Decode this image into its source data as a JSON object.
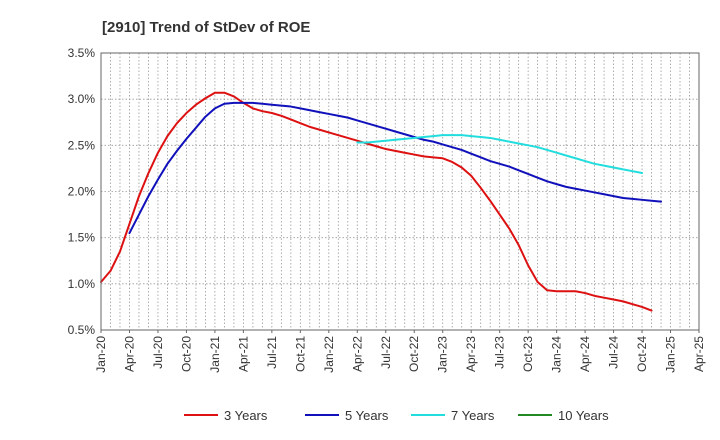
{
  "chart_data": {
    "type": "line",
    "title": "[2910]  Trend of StDev of ROE",
    "xlabel": "",
    "ylabel": "",
    "x_ticks": [
      "Jan-20",
      "Apr-20",
      "Jul-20",
      "Oct-20",
      "Jan-21",
      "Apr-21",
      "Jul-21",
      "Oct-21",
      "Jan-22",
      "Apr-22",
      "Jul-22",
      "Oct-22",
      "Jan-23",
      "Apr-23",
      "Jul-23",
      "Oct-23",
      "Jan-24",
      "Apr-24",
      "Jul-24",
      "Oct-24",
      "Jan-25",
      "Apr-25"
    ],
    "y_ticks": [
      "0.5%",
      "1.0%",
      "1.5%",
      "2.0%",
      "2.5%",
      "3.0%",
      "3.5%"
    ],
    "ylim": [
      0.5,
      3.5
    ],
    "y_unit": "%",
    "grid": true,
    "legend_position": "bottom",
    "series": [
      {
        "name": "3 Years",
        "color": "#dd1111",
        "start_index": 0,
        "values": [
          1.02,
          1.14,
          1.35,
          1.65,
          1.95,
          2.2,
          2.42,
          2.6,
          2.74,
          2.85,
          2.94,
          3.01,
          3.07,
          3.07,
          3.03,
          2.96,
          2.9,
          2.87,
          2.85,
          2.82,
          2.78,
          2.74,
          2.7,
          2.67,
          2.64,
          2.61,
          2.58,
          2.55,
          2.52,
          2.49,
          2.46,
          2.44,
          2.42,
          2.4,
          2.38,
          2.37,
          2.36,
          2.32,
          2.26,
          2.17,
          2.04,
          1.9,
          1.75,
          1.6,
          1.42,
          1.2,
          1.02,
          0.93,
          0.92,
          0.92,
          0.92,
          0.9,
          0.87,
          0.85,
          0.83,
          0.81,
          0.78,
          0.75,
          0.71
        ]
      },
      {
        "name": "5 Years",
        "color": "#1111bb",
        "start_index": 3,
        "values": [
          1.55,
          1.75,
          1.95,
          2.13,
          2.3,
          2.44,
          2.57,
          2.69,
          2.81,
          2.9,
          2.95,
          2.96,
          2.96,
          2.96,
          2.95,
          2.94,
          2.93,
          2.92,
          2.9,
          2.88,
          2.86,
          2.84,
          2.82,
          2.8,
          2.77,
          2.74,
          2.71,
          2.68,
          2.65,
          2.62,
          2.59,
          2.56,
          2.54,
          2.51,
          2.48,
          2.45,
          2.41,
          2.37,
          2.33,
          2.3,
          2.27,
          2.23,
          2.19,
          2.15,
          2.11,
          2.08,
          2.05,
          2.03,
          2.01,
          1.99,
          1.97,
          1.95,
          1.93,
          1.92,
          1.91,
          1.9,
          1.89
        ]
      },
      {
        "name": "7 Years",
        "color": "#22dddd",
        "start_index": 27,
        "values": [
          2.53,
          2.53,
          2.54,
          2.55,
          2.56,
          2.57,
          2.58,
          2.59,
          2.6,
          2.61,
          2.61,
          2.61,
          2.6,
          2.59,
          2.58,
          2.56,
          2.54,
          2.52,
          2.5,
          2.48,
          2.45,
          2.42,
          2.39,
          2.36,
          2.33,
          2.3,
          2.28,
          2.26,
          2.24,
          2.22,
          2.2
        ]
      },
      {
        "name": "10 Years",
        "color": "#228822",
        "start_index": 0,
        "values": []
      }
    ]
  }
}
